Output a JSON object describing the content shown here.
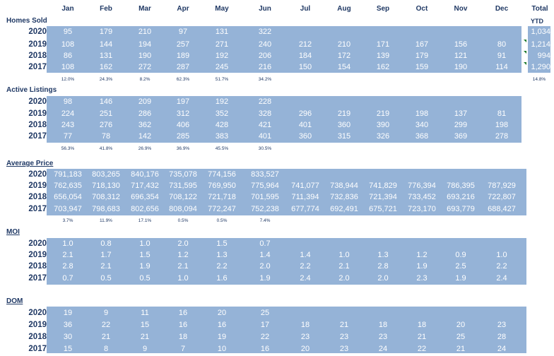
{
  "months": [
    "Jan",
    "Feb",
    "Mar",
    "Apr",
    "May",
    "Jun",
    "Jul",
    "Aug",
    "Sep",
    "Oct",
    "Nov",
    "Dec"
  ],
  "total_label": "Total",
  "ytd_label": "YTD",
  "sections": [
    {
      "title": "Homes Sold",
      "underline": false,
      "rows": [
        {
          "year": "2020",
          "values": [
            "95",
            "179",
            "210",
            "97",
            "131",
            "322",
            "",
            "",
            "",
            "",
            "",
            ""
          ],
          "total": "1,034"
        },
        {
          "year": "2019",
          "values": [
            "108",
            "144",
            "194",
            "257",
            "271",
            "240",
            "212",
            "210",
            "171",
            "167",
            "156",
            "80"
          ],
          "total": "1,214"
        },
        {
          "year": "2018",
          "values": [
            "86",
            "131",
            "190",
            "189",
            "192",
            "206",
            "184",
            "172",
            "139",
            "179",
            "121",
            "91"
          ],
          "total": "994"
        },
        {
          "year": "2017",
          "values": [
            "108",
            "162",
            "272",
            "287",
            "245",
            "216",
            "150",
            "154",
            "162",
            "159",
            "190",
            "114"
          ],
          "total": "1,290"
        }
      ],
      "changes": [
        "12.0%",
        "24.3%",
        "8.2%",
        "62.3%",
        "51.7%",
        "34.2%"
      ],
      "total_change": "14.8%"
    },
    {
      "title": "Active Listings",
      "underline": false,
      "rows": [
        {
          "year": "2020",
          "values": [
            "98",
            "146",
            "209",
            "197",
            "192",
            "228",
            "",
            "",
            "",
            "",
            "",
            ""
          ]
        },
        {
          "year": "2019",
          "values": [
            "224",
            "251",
            "286",
            "312",
            "352",
            "328",
            "296",
            "219",
            "219",
            "198",
            "137",
            "81"
          ]
        },
        {
          "year": "2018",
          "values": [
            "243",
            "276",
            "362",
            "406",
            "428",
            "421",
            "401",
            "360",
            "390",
            "340",
            "299",
            "198"
          ]
        },
        {
          "year": "2017",
          "values": [
            "77",
            "78",
            "142",
            "285",
            "383",
            "401",
            "360",
            "315",
            "326",
            "368",
            "369",
            "278"
          ]
        }
      ],
      "changes": [
        "56.3%",
        "41.8%",
        "26.9%",
        "36.9%",
        "45.5%",
        "30.5%"
      ]
    },
    {
      "title": "Average Price",
      "underline": true,
      "rows": [
        {
          "year": "2020",
          "values": [
            "791,183",
            "803,265",
            "840,176",
            "735,078",
            "774,156",
            "833,527",
            "",
            "",
            "",
            "",
            "",
            ""
          ]
        },
        {
          "year": "2019",
          "values": [
            "762,635",
            "718,130",
            "717,432",
            "731,595",
            "769,950",
            "775,964",
            "741,077",
            "738,944",
            "741,829",
            "776,394",
            "786,395",
            "787,929"
          ]
        },
        {
          "year": "2018",
          "values": [
            "656,054",
            "708,312",
            "696,354",
            "708,122",
            "721,718",
            "701,595",
            "711,394",
            "732,836",
            "721,394",
            "733,452",
            "693,216",
            "722,807"
          ]
        },
        {
          "year": "2017",
          "values": [
            "703,947",
            "798,683",
            "802,656",
            "808,094",
            "772,247",
            "752,238",
            "677,774",
            "692,491",
            "675,721",
            "723,170",
            "693,779",
            "688,427"
          ]
        }
      ],
      "changes": [
        "3.7%",
        "11.9%",
        "17.1%",
        "0.5%",
        "0.5%",
        "7.4%"
      ]
    },
    {
      "title": "MOI",
      "underline": true,
      "rows": [
        {
          "year": "2020",
          "values": [
            "1.0",
            "0.8",
            "1.0",
            "2.0",
            "1.5",
            "0.7",
            "",
            "",
            "",
            "",
            "",
            ""
          ]
        },
        {
          "year": "2019",
          "values": [
            "2.1",
            "1.7",
            "1.5",
            "1.2",
            "1.3",
            "1.4",
            "1.4",
            "1.0",
            "1.3",
            "1.2",
            "0.9",
            "1.0"
          ]
        },
        {
          "year": "2018",
          "values": [
            "2.8",
            "2.1",
            "1.9",
            "2.1",
            "2.2",
            "2.0",
            "2.2",
            "2.1",
            "2.8",
            "1.9",
            "2.5",
            "2.2"
          ]
        },
        {
          "year": "2017",
          "values": [
            "0.7",
            "0.5",
            "0.5",
            "1.0",
            "1.6",
            "1.9",
            "2.4",
            "2.0",
            "2.0",
            "2.3",
            "1.9",
            "2.4"
          ]
        }
      ]
    },
    {
      "title": "DOM",
      "underline": true,
      "rows": [
        {
          "year": "2020",
          "values": [
            "19",
            "9",
            "11",
            "16",
            "20",
            "25",
            "",
            "",
            "",
            "",
            "",
            ""
          ]
        },
        {
          "year": "2019",
          "values": [
            "36",
            "22",
            "15",
            "16",
            "16",
            "17",
            "18",
            "21",
            "18",
            "18",
            "20",
            "23"
          ]
        },
        {
          "year": "2018",
          "values": [
            "30",
            "21",
            "21",
            "18",
            "19",
            "22",
            "23",
            "23",
            "23",
            "21",
            "25",
            "28"
          ]
        },
        {
          "year": "2017",
          "values": [
            "15",
            "8",
            "9",
            "7",
            "10",
            "16",
            "20",
            "23",
            "24",
            "22",
            "21",
            "24"
          ]
        }
      ]
    }
  ]
}
